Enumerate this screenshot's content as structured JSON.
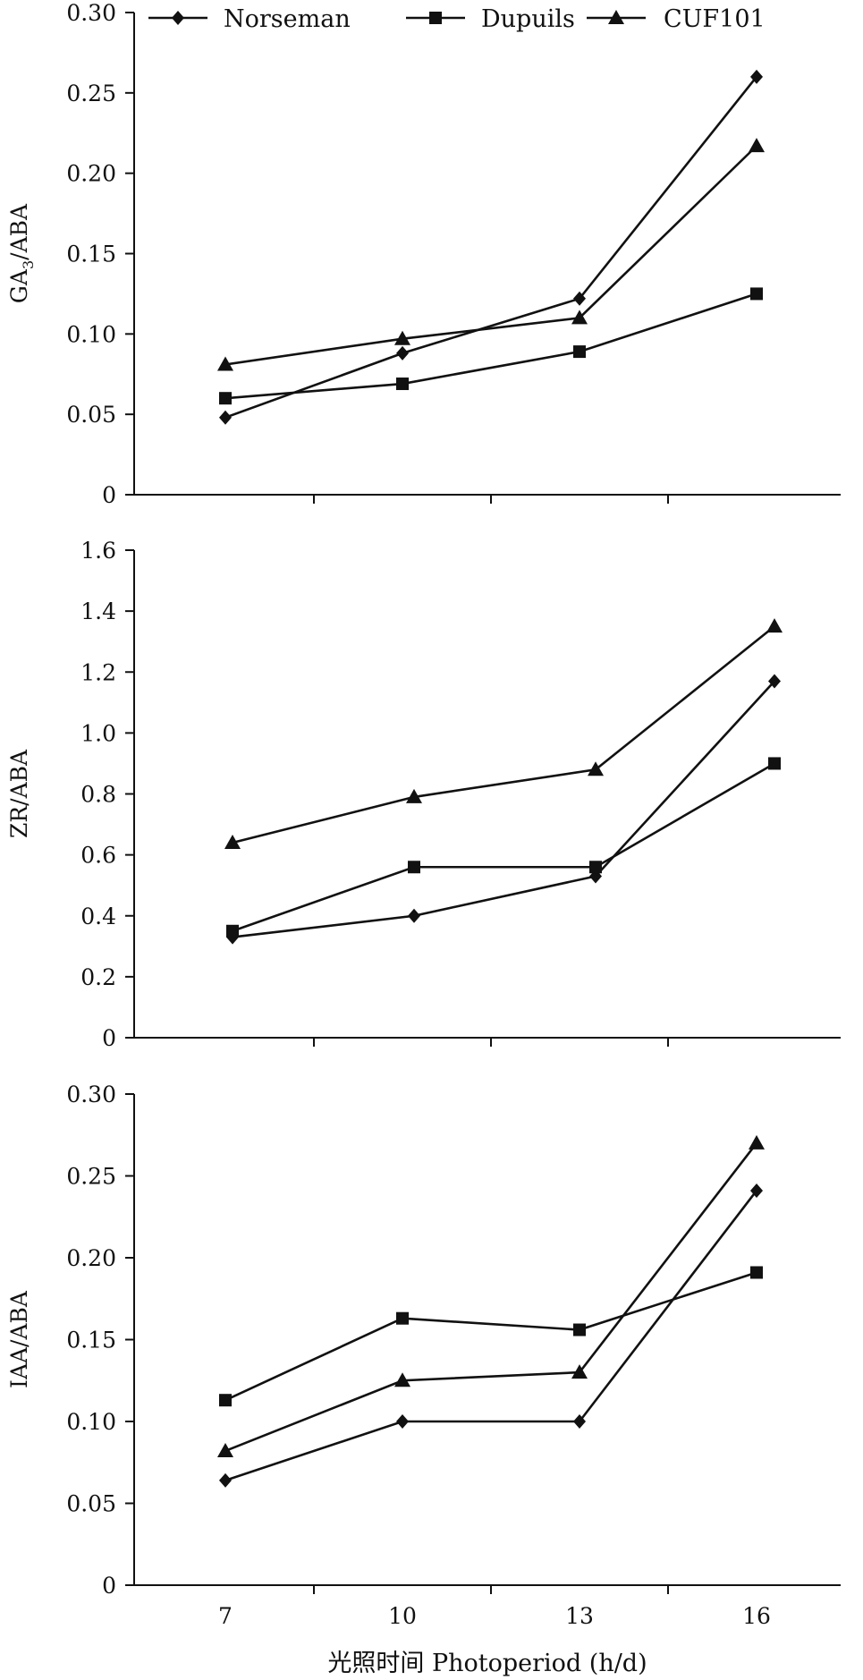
{
  "chart_data": {
    "type": "line",
    "x": [
      "7",
      "10",
      "13",
      "16"
    ],
    "xlabel": "光照时间 Photoperiod (h/d)",
    "legend": {
      "placement": "top",
      "entries": [
        {
          "name": "Norseman",
          "marker": "diamond"
        },
        {
          "name": "Dupuils",
          "marker": "square"
        },
        {
          "name": "CUF101",
          "marker": "triangle"
        }
      ]
    },
    "panels": [
      {
        "ylabel_main": "GA",
        "ylabel_sub": "3",
        "ylabel_rest": "/ABA",
        "ylim": [
          0,
          0.3
        ],
        "yticks": [
          "0",
          "0.05",
          "0.10",
          "0.15",
          "0.20",
          "0.25",
          "0.30"
        ],
        "series": [
          {
            "name": "Norseman",
            "values": [
              0.048,
              0.088,
              0.122,
              0.26
            ]
          },
          {
            "name": "Dupuils",
            "values": [
              0.06,
              0.069,
              0.089,
              0.125
            ]
          },
          {
            "name": "CUF101",
            "values": [
              0.081,
              0.097,
              0.11,
              0.217
            ]
          }
        ]
      },
      {
        "ylabel_main": "ZR/ABA",
        "ylabel_sub": "",
        "ylabel_rest": "",
        "ylim": [
          0,
          1.6
        ],
        "yticks": [
          "0",
          "0.2",
          "0.4",
          "0.6",
          "0.8",
          "1.0",
          "1.2",
          "1.4",
          "1.6"
        ],
        "series": [
          {
            "name": "Norseman",
            "values": [
              0.33,
              0.4,
              0.53,
              1.17
            ]
          },
          {
            "name": "Dupuils",
            "values": [
              0.35,
              0.56,
              0.56,
              0.9
            ]
          },
          {
            "name": "CUF101",
            "values": [
              0.64,
              0.79,
              0.88,
              1.35
            ]
          }
        ]
      },
      {
        "ylabel_main": "IAA/ABA",
        "ylabel_sub": "",
        "ylabel_rest": "",
        "ylim": [
          0,
          0.3
        ],
        "yticks": [
          "0",
          "0.05",
          "0.10",
          "0.15",
          "0.20",
          "0.25",
          "0.30"
        ],
        "series": [
          {
            "name": "Norseman",
            "values": [
              0.064,
              0.1,
              0.1,
              0.241
            ]
          },
          {
            "name": "Dupuils",
            "values": [
              0.113,
              0.163,
              0.156,
              0.191
            ]
          },
          {
            "name": "CUF101",
            "values": [
              0.082,
              0.125,
              0.13,
              0.27
            ]
          }
        ]
      }
    ]
  }
}
